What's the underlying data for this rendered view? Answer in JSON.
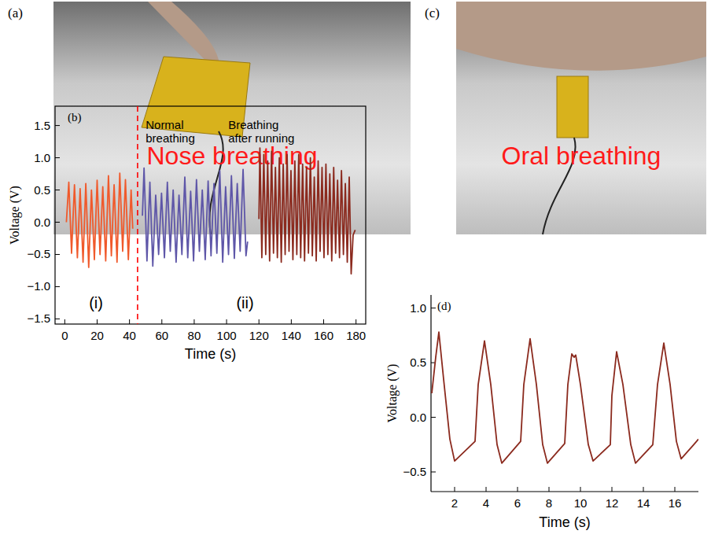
{
  "photos": [
    {
      "label": "(a)",
      "caption": "Nose breathing"
    },
    {
      "label": "(c)",
      "caption": "Oral breathing"
    }
  ],
  "chart_data": [
    {
      "type": "line",
      "panel_label": "(b)",
      "x_label": "Time (s)",
      "y_label": "Voltage (V)",
      "xlim": [
        -6,
        186
      ],
      "xticks": [
        0,
        20,
        40,
        60,
        80,
        100,
        120,
        140,
        160,
        180
      ],
      "ylim": [
        -1.58,
        1.8
      ],
      "yticks": [
        {
          "value": -1.5,
          "label": "−1.5"
        },
        {
          "value": -1.0,
          "label": "−1.0"
        },
        {
          "value": -0.5,
          "label": "−0.5"
        },
        {
          "value": 0.0,
          "label": "0.0"
        },
        0.5,
        {
          "value": 1.0,
          "label": "1.0"
        },
        1.5
      ],
      "vlines": [
        45
      ],
      "annotations": [
        "Normal breathing",
        "Breathing after running",
        "(i)",
        "(ii)"
      ],
      "series": [
        {
          "color": "#f0592b",
          "x": [
            1,
            2.5,
            4.2,
            6,
            7.8,
            9.5,
            11.3,
            13,
            14.8,
            16.5,
            18.3,
            20,
            21.8,
            23.5,
            25.3,
            27,
            28.8,
            30.5,
            32.3,
            34,
            35.8,
            37.5,
            39.3,
            41,
            42
          ],
          "values": [
            0.0,
            0.62,
            -0.48,
            0.58,
            -0.55,
            0.52,
            -0.62,
            0.6,
            -0.7,
            0.5,
            -0.58,
            0.65,
            -0.5,
            0.55,
            -0.6,
            0.72,
            -0.52,
            0.58,
            -0.62,
            0.76,
            -0.45,
            0.66,
            -0.58,
            0.5,
            -0.1
          ]
        },
        {
          "color": "#5e56a8",
          "x": [
            48,
            49,
            50.8,
            52.6,
            54.4,
            56.2,
            58,
            59.8,
            61.6,
            63.4,
            65.2,
            67,
            68.8,
            70.6,
            72.4,
            74.2,
            76,
            77.8,
            79.6,
            81.4,
            83.2,
            85,
            86.8,
            88.6,
            90.4,
            92.2,
            94,
            95.8,
            97.6,
            99.4,
            101.2,
            103,
            104.8,
            106.6,
            108.4,
            110.2,
            112,
            113
          ],
          "values": [
            0.1,
            0.84,
            -0.6,
            0.62,
            -0.68,
            0.42,
            -0.5,
            0.45,
            -0.55,
            0.62,
            -0.45,
            0.5,
            -0.62,
            0.42,
            -0.5,
            0.7,
            -0.55,
            0.48,
            -0.6,
            0.66,
            -0.45,
            0.5,
            -0.58,
            0.64,
            -0.52,
            0.6,
            -0.48,
            0.8,
            -0.62,
            0.55,
            -0.5,
            0.72,
            -0.56,
            0.6,
            -0.45,
            0.82,
            -0.52,
            -0.3
          ]
        },
        {
          "color": "#8b2a1e",
          "x": [
            120,
            120.6,
            121.8,
            123,
            124.2,
            125.4,
            126.6,
            127.8,
            129,
            130.2,
            131.4,
            132.6,
            133.8,
            135,
            136.2,
            137.4,
            138.6,
            139.8,
            141,
            142.2,
            143.4,
            144.6,
            145.8,
            147,
            148.2,
            149.4,
            150.6,
            151.8,
            153,
            154.2,
            155.4,
            156.6,
            157.8,
            159,
            160.2,
            161.4,
            162.6,
            163.8,
            165,
            166.2,
            167.4,
            168.6,
            169.8,
            171,
            172.2,
            173.4,
            174.6,
            175.8,
            177,
            178.2,
            179.5
          ],
          "values": [
            0.05,
            1.15,
            -0.55,
            1.05,
            -0.5,
            0.95,
            -0.6,
            1.1,
            -0.48,
            0.85,
            -0.55,
            1.0,
            -0.62,
            0.9,
            -0.5,
            1.05,
            -0.45,
            0.8,
            -0.58,
            0.95,
            -0.5,
            1.05,
            -0.55,
            0.9,
            -0.6,
            0.85,
            -0.48,
            1.0,
            -0.52,
            0.7,
            -0.6,
            0.95,
            -0.45,
            0.85,
            -0.55,
            0.9,
            -0.5,
            0.75,
            -0.6,
            0.85,
            -0.48,
            0.65,
            -0.55,
            0.8,
            -0.5,
            0.6,
            -0.62,
            0.7,
            -0.8,
            -0.2,
            -0.12
          ]
        }
      ]
    },
    {
      "type": "line",
      "panel_label": "(d)",
      "x_label": "Time (s)",
      "y_label": "Voltage (V)",
      "xlim": [
        0.5,
        17.5
      ],
      "xticks": [
        2,
        4,
        6,
        8,
        10,
        12,
        14,
        16
      ],
      "ylim": [
        -0.68,
        1.12
      ],
      "yticks": [
        {
          "value": -0.5,
          "label": "−0.5"
        },
        {
          "value": 0.0,
          "label": "0.0"
        },
        0.5,
        {
          "value": 1.0,
          "label": "1.0"
        }
      ],
      "series": [
        {
          "color": "#8b2a1e",
          "x": [
            0.55,
            0.8,
            1.0,
            1.3,
            1.7,
            2.0,
            3.3,
            3.5,
            3.9,
            4.3,
            4.7,
            5.0,
            6.2,
            6.4,
            6.8,
            7.2,
            7.6,
            7.9,
            9.0,
            9.2,
            9.45,
            9.6,
            9.7,
            10.0,
            10.5,
            10.8,
            11.9,
            12.0,
            12.3,
            12.7,
            13.2,
            13.5,
            14.6,
            14.9,
            15.3,
            15.7,
            16.1,
            16.4,
            17.2,
            17.5
          ],
          "values": [
            0.22,
            0.55,
            0.78,
            0.35,
            -0.2,
            -0.4,
            -0.22,
            0.3,
            0.7,
            0.3,
            -0.25,
            -0.42,
            -0.22,
            0.3,
            0.72,
            0.3,
            -0.25,
            -0.42,
            -0.24,
            0.3,
            0.58,
            0.55,
            0.57,
            0.3,
            -0.25,
            -0.4,
            -0.25,
            0.2,
            0.6,
            0.3,
            -0.25,
            -0.42,
            -0.25,
            0.3,
            0.68,
            0.3,
            -0.22,
            -0.38,
            -0.25,
            -0.2
          ]
        }
      ]
    }
  ]
}
